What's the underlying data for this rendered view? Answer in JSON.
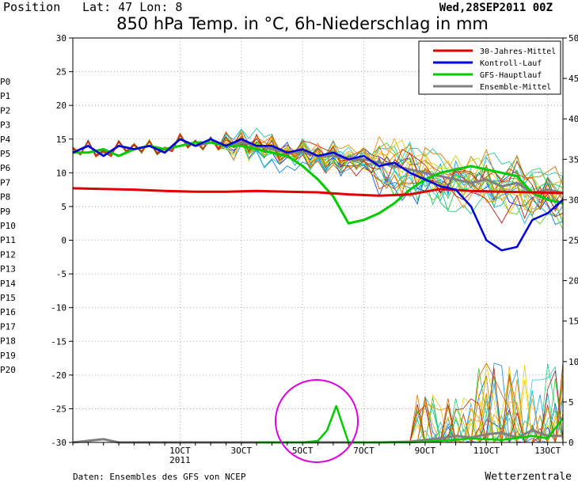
{
  "header": {
    "position_label": "Position",
    "lat_lon": "Lat: 47 Lon: 8",
    "run_label": "Wed,28SEP2011 00Z",
    "title": "850 hPa Temp. in °C, 6h-Niederschlag in mm"
  },
  "footer": {
    "source": "Daten: Ensembles des GFS von NCEP",
    "brand": "Wetterzentrale"
  },
  "colors": {
    "climate": "#e00000",
    "control": "#0000dd",
    "main": "#00cc00",
    "ensemble_mean": "#808080",
    "highlight_circle": "#e000e0"
  },
  "legend": [
    {
      "label": "30-Jahres-Mittel",
      "color": "#e00000"
    },
    {
      "label": "Kontroll-Lauf",
      "color": "#0000dd"
    },
    {
      "label": "GFS-Hauptlauf",
      "color": "#00cc00"
    },
    {
      "label": "Ensemble-Mittel",
      "color": "#808080"
    }
  ],
  "members": [
    {
      "label": "P0",
      "color": "#1010d0"
    },
    {
      "label": "P1",
      "color": "#1050e0"
    },
    {
      "label": "P2",
      "color": "#1080e8"
    },
    {
      "label": "P3",
      "color": "#10a0e0"
    },
    {
      "label": "P4",
      "color": "#10b8d8"
    },
    {
      "label": "P5",
      "color": "#20c8c8"
    },
    {
      "label": "P6",
      "color": "#20c8a0"
    },
    {
      "label": "P7",
      "color": "#20c878"
    },
    {
      "label": "P8",
      "color": "#20c850"
    },
    {
      "label": "P9",
      "color": "#30c830"
    },
    {
      "label": "P10",
      "color": "#60d020"
    },
    {
      "label": "P11",
      "color": "#c8d800"
    },
    {
      "label": "P12",
      "color": "#e8d000"
    },
    {
      "label": "P13",
      "color": "#f0c000"
    },
    {
      "label": "P14",
      "color": "#f0a800"
    },
    {
      "label": "P15",
      "color": "#e89000"
    },
    {
      "label": "P16",
      "color": "#e07800"
    },
    {
      "label": "P17",
      "color": "#d86000"
    },
    {
      "label": "P18",
      "color": "#d04800"
    },
    {
      "label": "P19",
      "color": "#c03000"
    },
    {
      "label": "P20",
      "color": "#b02020"
    }
  ],
  "chart_data": {
    "type": "line",
    "x_unit": "days since 28SEP2011 00Z (6h steps)",
    "xlim": [
      0,
      16
    ],
    "ylim_left": [
      -30,
      30
    ],
    "ylim_right": [
      0,
      50
    ],
    "y_ticks_left": [
      30,
      25,
      20,
      15,
      10,
      5,
      0,
      -5,
      -10,
      -15,
      -20,
      -25,
      -30
    ],
    "y_ticks_right": [
      50,
      45,
      40,
      35,
      30,
      25,
      20,
      15,
      10,
      5,
      0
    ],
    "x_ticks": [
      {
        "x": 3.5,
        "label": "1OCT",
        "sub": "2011"
      },
      {
        "x": 5.5,
        "label": "3OCT",
        "sub": ""
      },
      {
        "x": 7.5,
        "label": "5OCT",
        "sub": ""
      },
      {
        "x": 9.5,
        "label": "7OCT",
        "sub": ""
      },
      {
        "x": 11.5,
        "label": "9OCT",
        "sub": ""
      },
      {
        "x": 13.5,
        "label": "11OCT",
        "sub": ""
      },
      {
        "x": 15.5,
        "label": "13OCT",
        "sub": ""
      }
    ],
    "grid": true,
    "legend_position": "top-right",
    "series": [
      {
        "name": "30-Jahres-Mittel",
        "axis": "left",
        "color": "#e00000",
        "width": 3,
        "x": [
          0,
          1,
          2,
          3,
          4,
          5,
          6,
          7,
          8,
          9,
          10,
          11,
          12,
          13,
          14,
          15,
          16
        ],
        "y": [
          7.7,
          7.6,
          7.5,
          7.3,
          7.2,
          7.2,
          7.3,
          7.2,
          7.1,
          6.8,
          6.6,
          6.8,
          7.6,
          7.3,
          7.2,
          7.1,
          7.0
        ]
      },
      {
        "name": "Kontroll-Lauf",
        "axis": "left",
        "color": "#0000dd",
        "width": 2.5,
        "x": [
          0,
          0.5,
          1,
          1.5,
          2,
          2.5,
          3,
          3.5,
          4,
          4.5,
          5,
          5.5,
          6,
          6.5,
          7,
          7.5,
          8,
          8.5,
          9,
          9.5,
          10,
          10.5,
          11,
          11.5,
          12,
          12.5,
          13,
          13.5,
          14,
          14.5,
          15,
          15.5,
          16
        ],
        "y": [
          13,
          14,
          12.5,
          14,
          13.5,
          14,
          13,
          15,
          14,
          15,
          14,
          15,
          14,
          14,
          13,
          13.5,
          12.5,
          13,
          12,
          12.5,
          11,
          11.5,
          10,
          9,
          8,
          7.5,
          5,
          0,
          -1.5,
          -1,
          3,
          4,
          6
        ]
      },
      {
        "name": "GFS-Hauptlauf",
        "axis": "left",
        "color": "#00cc00",
        "width": 3,
        "x": [
          0,
          0.5,
          1,
          1.5,
          2,
          2.5,
          3,
          3.5,
          4,
          4.5,
          5,
          5.5,
          6,
          6.5,
          7,
          7.5,
          8,
          8.5,
          9,
          9.5,
          10,
          10.5,
          11,
          11.5,
          12,
          12.5,
          13,
          13.5,
          14,
          14.5,
          15,
          15.5,
          16
        ],
        "y": [
          13,
          13,
          13.5,
          12.5,
          13.5,
          14,
          13.5,
          14,
          14.5,
          14.5,
          14,
          14,
          13.5,
          13,
          12.5,
          11,
          9,
          6.5,
          2.5,
          3,
          4,
          5.5,
          7.5,
          9,
          10,
          10.5,
          11,
          10.5,
          10,
          9.5,
          7,
          6,
          5.5
        ]
      },
      {
        "name": "Ensemble-Mittel",
        "axis": "left",
        "color": "#808080",
        "width": 3,
        "x": [
          0,
          0.5,
          1,
          1.5,
          2,
          2.5,
          3,
          3.5,
          4,
          4.5,
          5,
          5.5,
          6,
          6.5,
          7,
          7.5,
          8,
          8.5,
          9,
          9.5,
          10,
          10.5,
          11,
          11.5,
          12,
          12.5,
          13,
          13.5,
          14,
          14.5,
          15,
          15.5,
          16
        ],
        "y": [
          13,
          14,
          12.5,
          14,
          13.5,
          14,
          13,
          15,
          14,
          14.5,
          14,
          14.5,
          14,
          13.5,
          13,
          13,
          12.5,
          12.5,
          12,
          12,
          11.5,
          11,
          10.5,
          10,
          9.5,
          9,
          8.5,
          9,
          8,
          8.5,
          7,
          7.5,
          7
        ]
      },
      {
        "name": "GFS-Hauptlauf Niederschlag",
        "axis": "right",
        "color": "#00cc00",
        "width": 2.5,
        "x": [
          6,
          7,
          7.5,
          8,
          8.3,
          8.6,
          9,
          10,
          11,
          12,
          13,
          14,
          15,
          15.5,
          16
        ],
        "y": [
          0,
          0,
          0,
          0.2,
          1.5,
          4.5,
          0,
          0,
          0,
          0.2,
          0.5,
          0.3,
          0.8,
          0.5,
          3
        ]
      },
      {
        "name": "Ensemble-Mittel Niederschlag",
        "axis": "right",
        "color": "#808080",
        "width": 3,
        "x": [
          0,
          1,
          1.5,
          2,
          3,
          5,
          7,
          9,
          10,
          11,
          12,
          12.5,
          13,
          13.5,
          14,
          14.5,
          15,
          15.5,
          16
        ],
        "y": [
          0,
          0.4,
          0,
          0,
          0,
          0,
          0,
          0,
          0,
          0.1,
          0.5,
          0.8,
          0.6,
          1,
          1.2,
          0.6,
          1.5,
          0.8,
          0.8
        ]
      }
    ]
  }
}
